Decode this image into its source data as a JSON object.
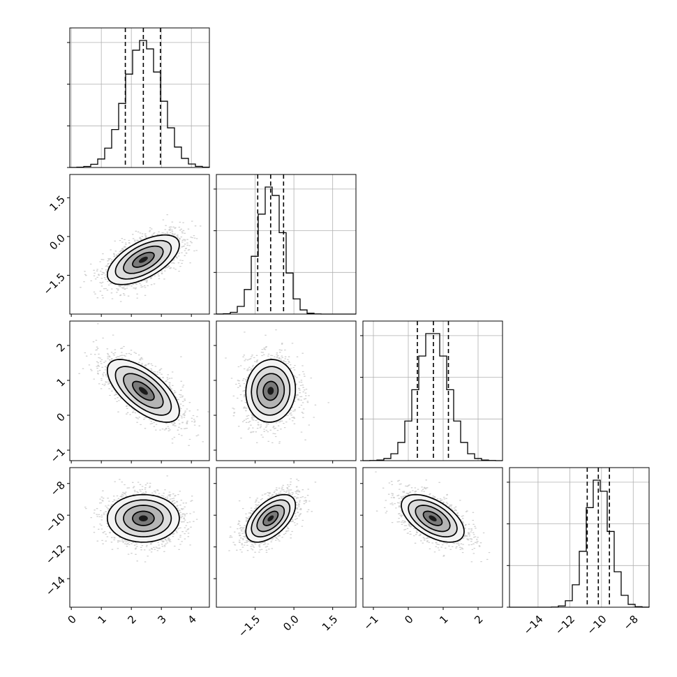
{
  "chart_data": {
    "type": "corner",
    "parameters": [
      {
        "range": [
          -0.05,
          4.6
        ],
        "ticks": [
          0,
          1,
          2,
          3,
          4
        ],
        "tick_labels": [
          "0",
          "1",
          "2",
          "3",
          "4"
        ],
        "mean": 2.4,
        "sd": 0.6,
        "quantiles": [
          1.8,
          2.4,
          2.97
        ]
      },
      {
        "range": [
          -3.0,
          2.4
        ],
        "ticks": [
          -1.5,
          0.0,
          1.5
        ],
        "tick_labels": [
          "−1.5",
          "0.0",
          "1.5"
        ],
        "mean": -0.9,
        "sd": 0.48,
        "quantiles": [
          -1.4,
          -0.9,
          -0.4
        ]
      },
      {
        "range": [
          -1.3,
          2.7
        ],
        "ticks": [
          -1,
          0,
          1,
          2
        ],
        "tick_labels": [
          "−1",
          "0",
          "1",
          "2"
        ],
        "mean": 0.7,
        "sd": 0.45,
        "quantiles": [
          0.26,
          0.72,
          1.15
        ]
      },
      {
        "range": [
          -15.8,
          -7.0
        ],
        "ticks": [
          -14,
          -12,
          -10,
          -8
        ],
        "tick_labels": [
          "−14",
          "−12",
          "−10",
          "−8"
        ],
        "mean": -10.2,
        "sd": 0.75,
        "quantiles": [
          -10.9,
          -10.2,
          -9.5
        ]
      }
    ],
    "y_tick_labels": {
      "row1": [
        "1.5",
        "0.0",
        "−1.5"
      ],
      "row2": [
        "2",
        "1",
        "0",
        "−1"
      ],
      "row3": [
        "−8",
        "−10",
        "−12",
        "−14"
      ]
    },
    "correlations": {
      "0-1": 0.6,
      "0-2": -0.65,
      "1-2": 0.05,
      "0-3": 0.0,
      "1-3": 0.55,
      "2-3": -0.55
    },
    "histogram_bins": 20,
    "diagonal_tick_count": 3,
    "grid": true,
    "contour_levels": 4
  }
}
